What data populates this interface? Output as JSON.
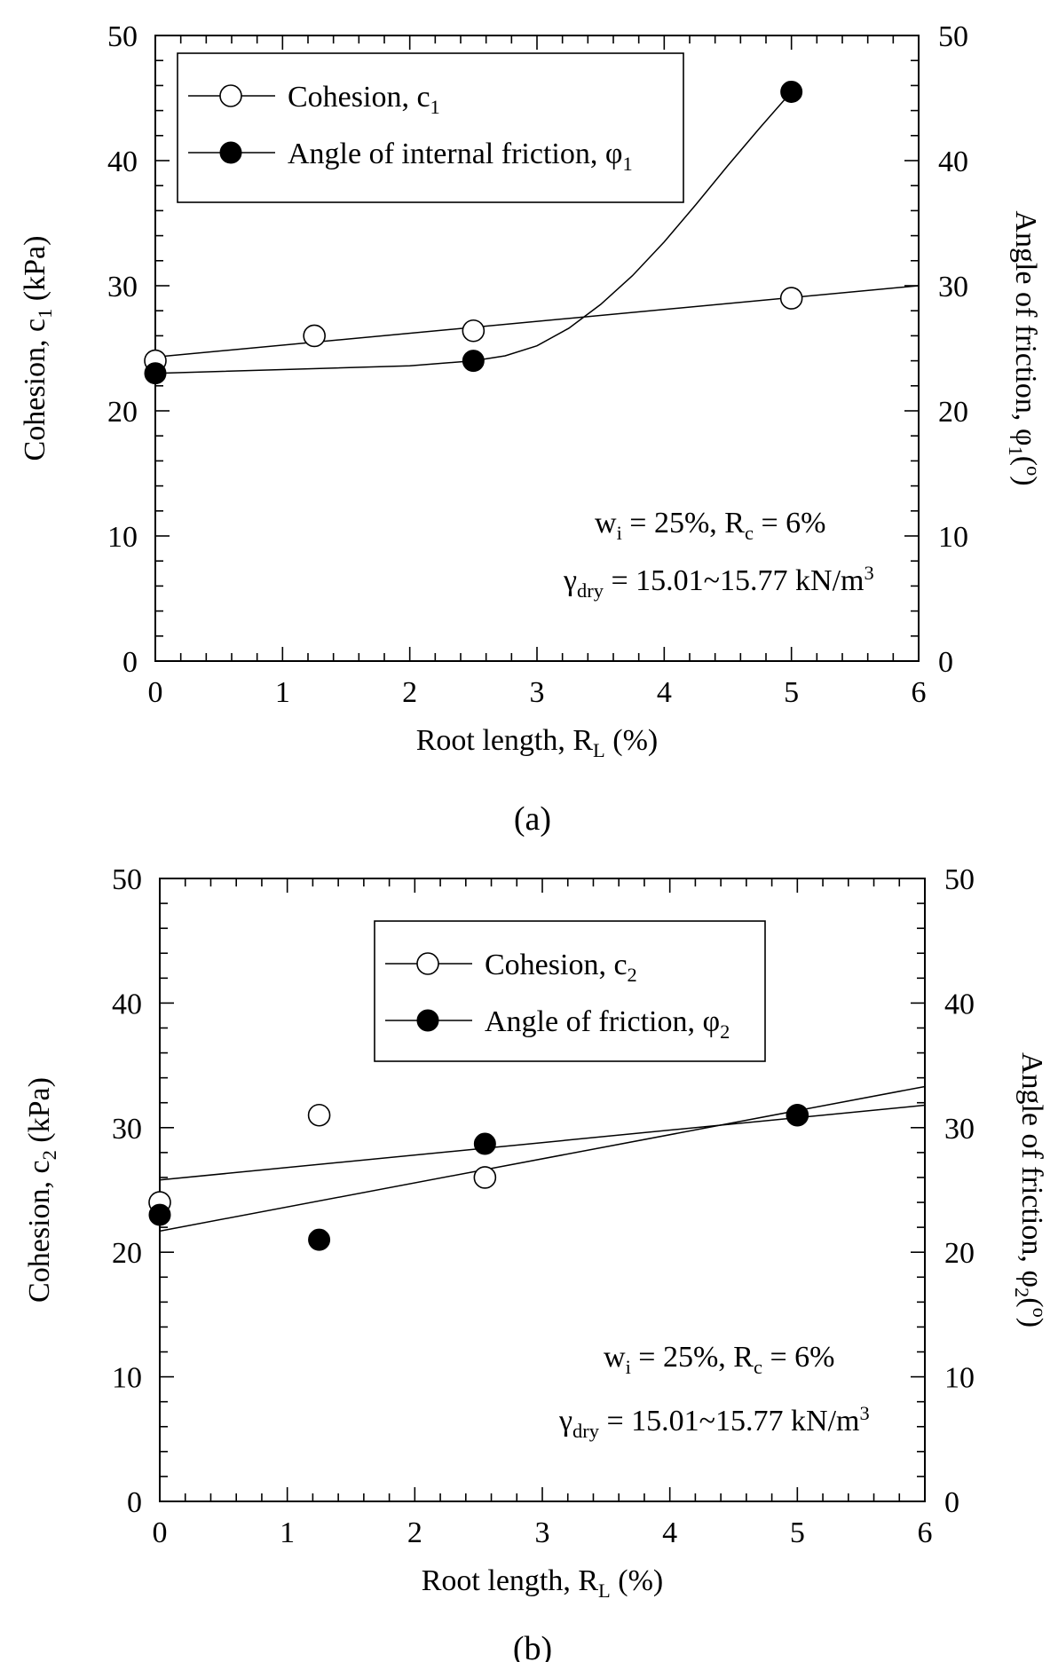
{
  "chart_data": [
    {
      "type": "scatter",
      "panel": "a",
      "caption": "(a)",
      "x": {
        "label": "Root length, R",
        "label_sub": "L",
        "label_tail": " (%)",
        "range": [
          0,
          6
        ],
        "major_ticks": [
          0,
          1,
          2,
          3,
          4,
          5,
          6
        ],
        "minor_step": 0.2
      },
      "y_left": {
        "label": "Cohesion, c",
        "label_sub": "1",
        "label_tail": " (kPa)",
        "range": [
          0,
          50
        ],
        "major_ticks": [
          0,
          10,
          20,
          30,
          40,
          50
        ],
        "minor_step": 2
      },
      "y_right": {
        "label": "Angle of friction, φ",
        "label_sub": "1",
        "label_tail": "(o)",
        "range": [
          0,
          50
        ],
        "major_ticks": [
          0,
          10,
          20,
          30,
          40,
          50
        ]
      },
      "grid": false,
      "legend": {
        "placement": "top-left",
        "entries": [
          {
            "text": "Cohesion, c",
            "sub": "1",
            "marker": "open-circle"
          },
          {
            "text": "Angle of internal friction, φ",
            "sub": "1",
            "marker": "filled-circle"
          }
        ]
      },
      "annotations": [
        {
          "parts": [
            [
              "w",
              ""
            ],
            [
              "i",
              "sub"
            ],
            [
              " = 25%, R",
              ""
            ],
            [
              "c",
              "sub"
            ],
            [
              " = 6%",
              ""
            ]
          ]
        },
        {
          "parts": [
            [
              "γ",
              ""
            ],
            [
              "dry",
              "sub"
            ],
            [
              " = 15.01~15.77 kN/m",
              ""
            ],
            [
              "3",
              "sup"
            ]
          ]
        }
      ],
      "series": [
        {
          "name": "Cohesion, c1",
          "marker": "open-circle",
          "axis": "left",
          "points": [
            [
              0,
              24
            ],
            [
              1.25,
              26
            ],
            [
              2.5,
              26.4
            ],
            [
              5,
              29
            ]
          ],
          "fit": {
            "kind": "linear",
            "x": [
              0,
              6
            ],
            "y": [
              24.3,
              30
            ]
          }
        },
        {
          "name": "Angle of internal friction, φ1",
          "marker": "filled-circle",
          "axis": "right",
          "points": [
            [
              0,
              23
            ],
            [
              2.5,
              24
            ],
            [
              5,
              45.5
            ]
          ],
          "fit": {
            "kind": "curve",
            "x": [
              0,
              1,
              2,
              2.5,
              2.75,
              3,
              3.25,
              3.5,
              3.75,
              4,
              4.25,
              4.5,
              4.75,
              5
            ],
            "y": [
              23,
              23.3,
              23.6,
              24,
              24.4,
              25.2,
              26.6,
              28.5,
              30.8,
              33.5,
              36.5,
              39.6,
              42.6,
              45.5
            ]
          }
        }
      ]
    },
    {
      "type": "scatter",
      "panel": "b",
      "caption": "(b)",
      "x": {
        "label": "Root length, R",
        "label_sub": "L",
        "label_tail": " (%)",
        "range": [
          0,
          6
        ],
        "major_ticks": [
          0,
          1,
          2,
          3,
          4,
          5,
          6
        ],
        "minor_step": 0.2
      },
      "y_left": {
        "label": "Cohesion, c",
        "label_sub": "2",
        "label_tail": " (kPa)",
        "range": [
          0,
          50
        ],
        "major_ticks": [
          0,
          10,
          20,
          30,
          40,
          50
        ],
        "minor_step": 2
      },
      "y_right": {
        "label": "Angle of friction, φ",
        "label_sub": "2",
        "label_tail": "(o)",
        "range": [
          0,
          50
        ],
        "major_ticks": [
          0,
          10,
          20,
          30,
          40,
          50
        ]
      },
      "grid": false,
      "legend": {
        "placement": "top-center",
        "entries": [
          {
            "text": "Cohesion, c",
            "sub": "2",
            "marker": "open-circle"
          },
          {
            "text": "Angle of friction, φ",
            "sub": "2",
            "marker": "filled-circle"
          }
        ]
      },
      "annotations": [
        {
          "parts": [
            [
              "w",
              ""
            ],
            [
              "i",
              "sub"
            ],
            [
              " = 25%, R",
              ""
            ],
            [
              "c",
              "sub"
            ],
            [
              " = 6%",
              ""
            ]
          ]
        },
        {
          "parts": [
            [
              "γ",
              ""
            ],
            [
              "dry",
              "sub"
            ],
            [
              " = 15.01~15.77 kN/m",
              ""
            ],
            [
              "3",
              "sup"
            ]
          ]
        }
      ],
      "series": [
        {
          "name": "Cohesion, c2",
          "marker": "open-circle",
          "axis": "left",
          "points": [
            [
              0,
              24
            ],
            [
              1.25,
              31
            ],
            [
              2.55,
              26
            ],
            [
              5,
              31
            ]
          ],
          "fit": {
            "kind": "linear",
            "x": [
              0,
              6
            ],
            "y": [
              25.8,
              31.8
            ]
          }
        },
        {
          "name": "Angle of friction, φ2",
          "marker": "filled-circle",
          "axis": "right",
          "points": [
            [
              0,
              23
            ],
            [
              1.25,
              21
            ],
            [
              2.55,
              28.7
            ],
            [
              5,
              31
            ]
          ],
          "fit": {
            "kind": "linear",
            "x": [
              0,
              6
            ],
            "y": [
              21.7,
              33.3
            ]
          }
        }
      ]
    }
  ]
}
